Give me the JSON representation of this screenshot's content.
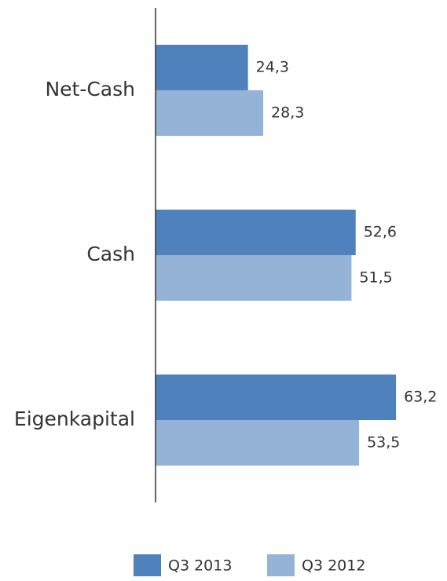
{
  "chart_data": {
    "type": "bar",
    "orientation": "horizontal",
    "categories": [
      "Net-Cash",
      "Cash",
      "Eigenkapital"
    ],
    "series": [
      {
        "name": "Q3 2013",
        "color": "#4f81bd",
        "values": [
          24.3,
          52.6,
          63.2
        ],
        "value_labels": [
          "24,3",
          "52,6",
          "63,2"
        ]
      },
      {
        "name": "Q3 2012",
        "color": "#95b3d7",
        "values": [
          28.3,
          51.5,
          53.5
        ],
        "value_labels": [
          "28,3",
          "51,5",
          "53,5"
        ]
      }
    ],
    "xlim": [
      0,
      70
    ]
  }
}
